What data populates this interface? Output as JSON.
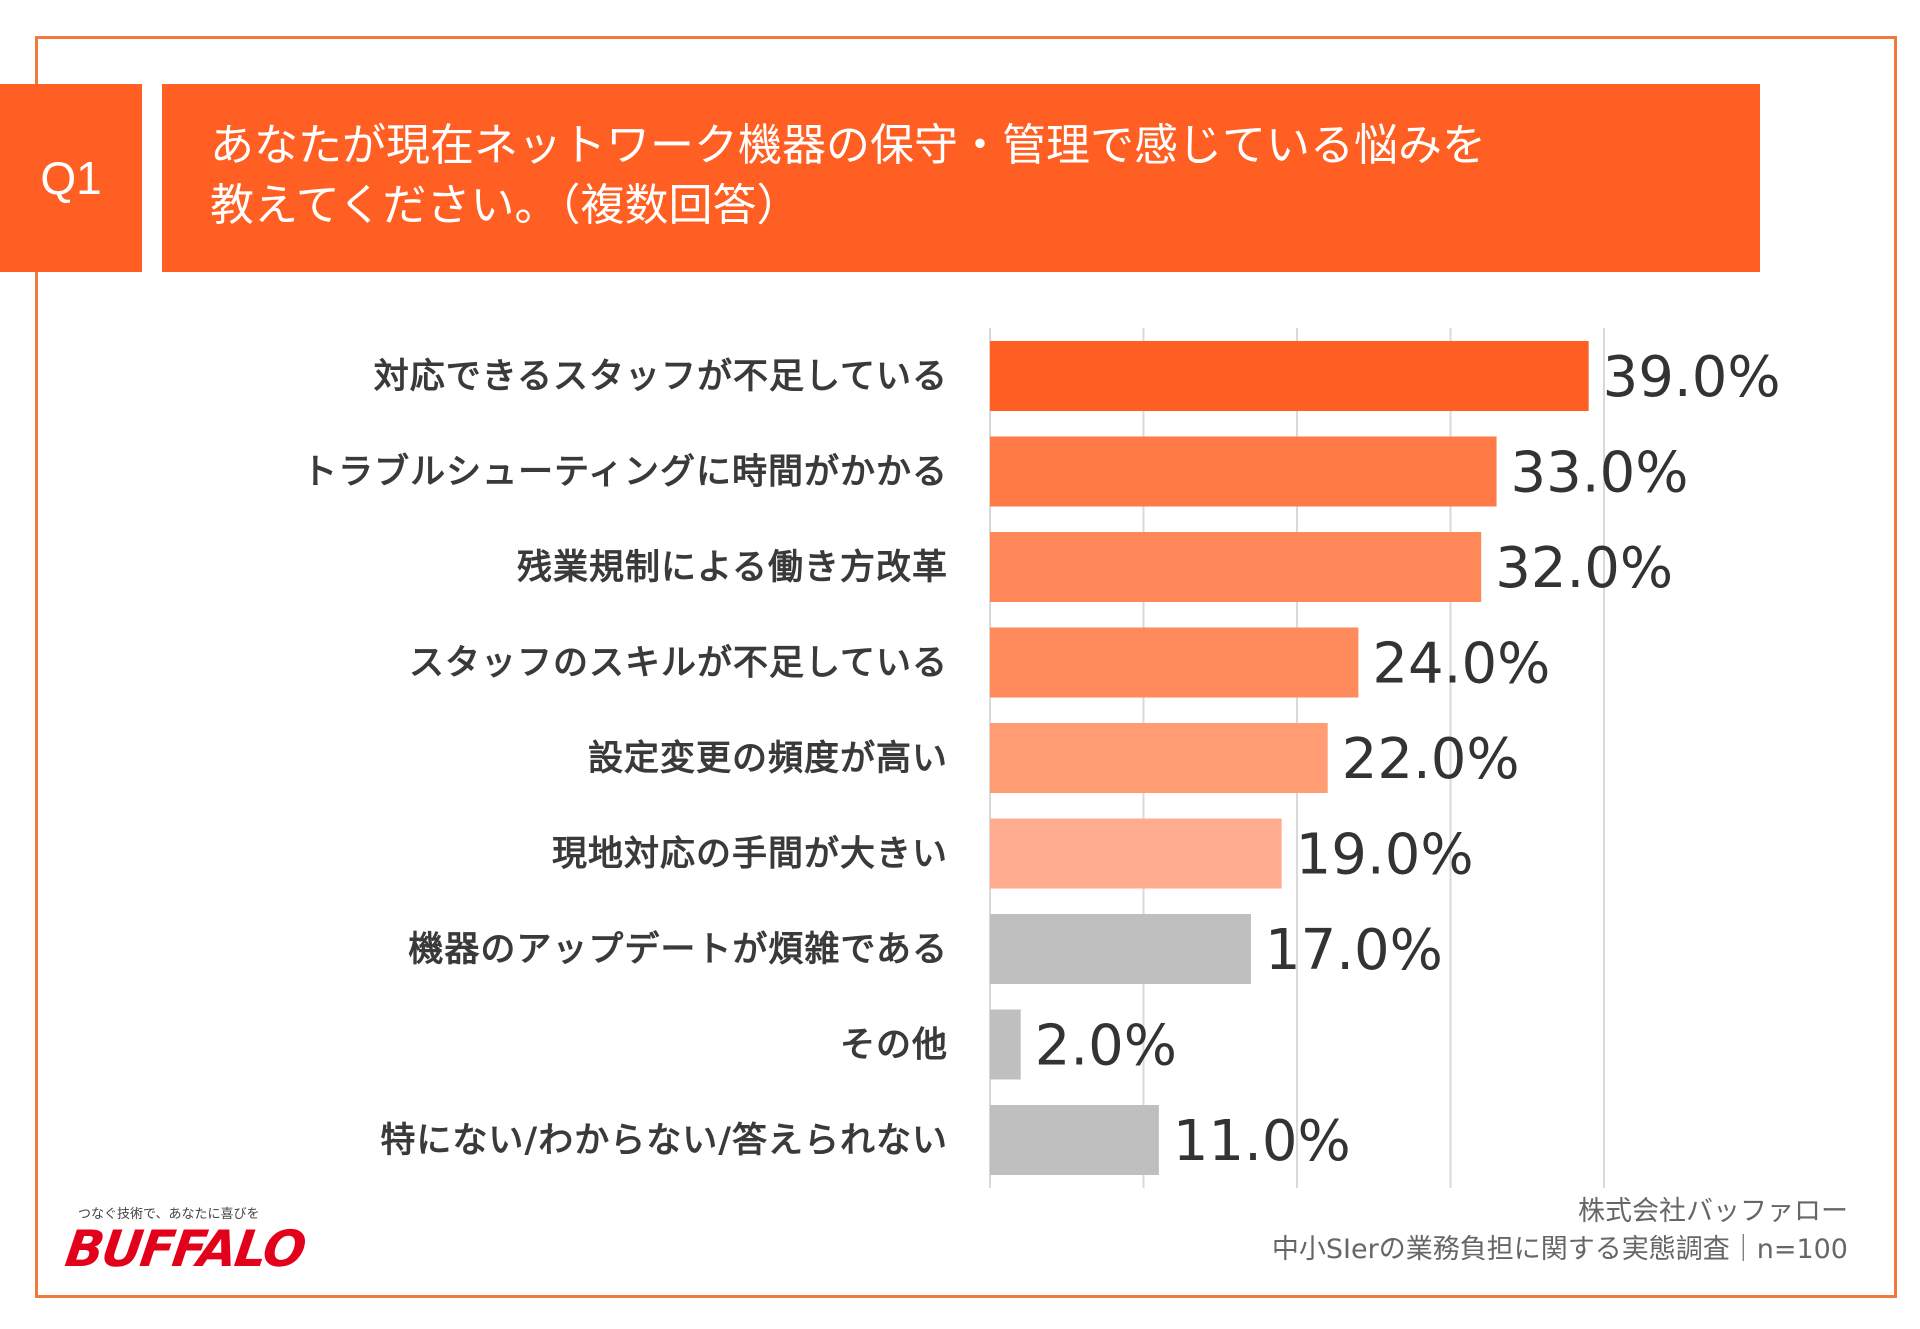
{
  "badge": "Q1",
  "question": {
    "line1": "あなたが現在ネットワーク機器の保守・管理で感じている悩みを",
    "line2": "教えてください。（複数回答）"
  },
  "chart_data": {
    "type": "bar",
    "orientation": "horizontal",
    "categories": [
      "対応できるスタッフが不足している",
      "トラブルシューティングに時間がかかる",
      "残業規制による働き方改革",
      "スタッフのスキルが不足している",
      "設定変更の頻度が高い",
      "現地対応の手間が大きい",
      "機器のアップデートが煩雑である",
      "その他",
      "特にない/わからない/答えられない"
    ],
    "values": [
      39.0,
      33.0,
      32.0,
      24.0,
      22.0,
      19.0,
      17.0,
      2.0,
      11.0
    ],
    "value_labels": [
      "39.0%",
      "33.0%",
      "32.0%",
      "24.0%",
      "22.0%",
      "19.0%",
      "17.0%",
      "2.0%",
      "11.0%"
    ],
    "colors": [
      "#FF5F22",
      "#FF7A45",
      "#FF8758",
      "#FF8A5C",
      "#FF9C74",
      "#FFAD8E",
      "#BFBFBF",
      "#BFBFBF",
      "#BFBFBF"
    ],
    "xlim": [
      0,
      40
    ],
    "grid": true
  },
  "footer": {
    "tagline": "つなぐ技術で、あなたに喜びを",
    "logo": "BUFFALO",
    "source_line1": "株式会社バッファロー",
    "source_line2": "中小SIerの業務負担に関する実態調査｜n=100"
  }
}
